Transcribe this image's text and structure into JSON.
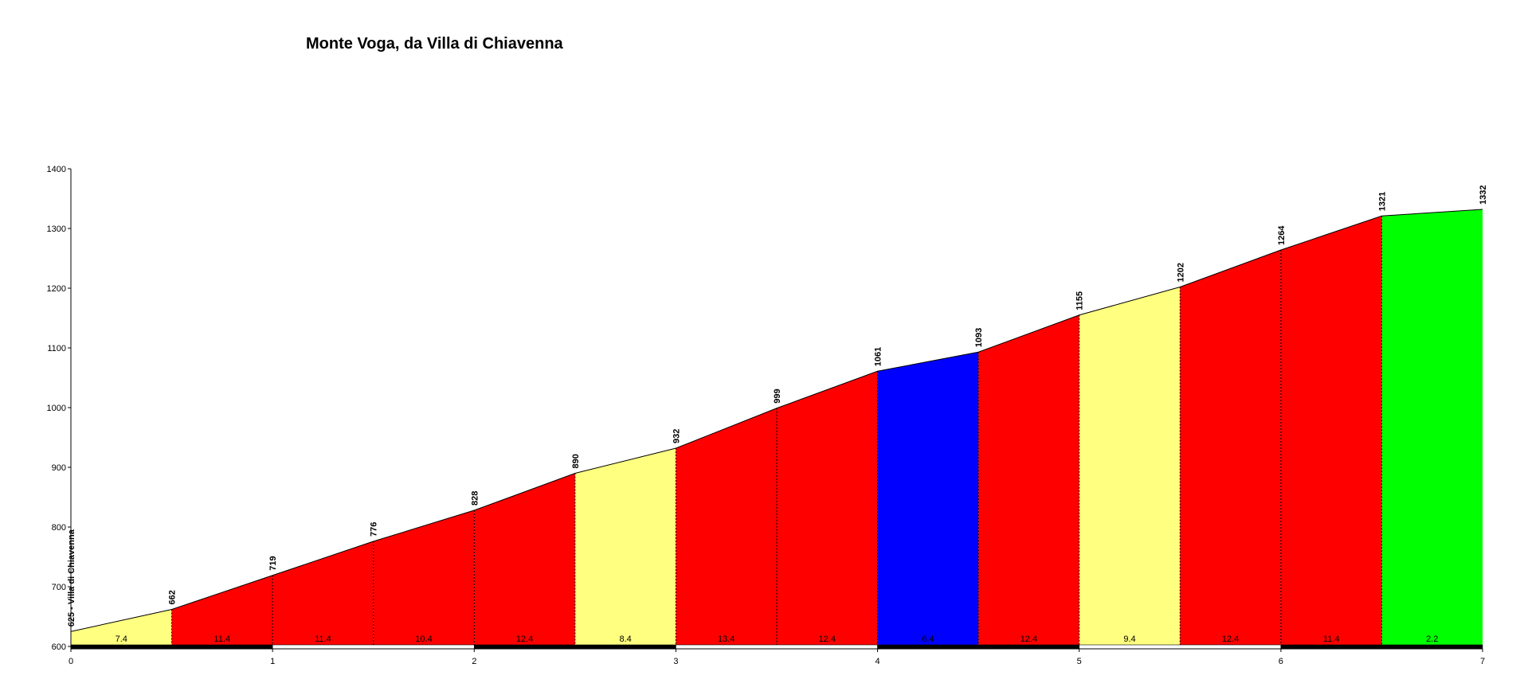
{
  "chart_data": {
    "type": "area",
    "title": "Monte Voga, da Villa di Chiavenna",
    "xlabel": "",
    "ylabel": "",
    "xlim": [
      0,
      7
    ],
    "ylim": [
      600,
      1400
    ],
    "x_ticks": [
      "0",
      "1",
      "2",
      "3",
      "4",
      "5",
      "6",
      "7"
    ],
    "y_ticks": [
      "600",
      "700",
      "800",
      "900",
      "1000",
      "1100",
      "1200",
      "1300",
      "1400"
    ],
    "grid": false,
    "legend": "none",
    "points": [
      {
        "x": 0.0,
        "y": 625,
        "label": "625 - Villa di Chiavenna"
      },
      {
        "x": 0.5,
        "y": 662,
        "label": "662"
      },
      {
        "x": 1.0,
        "y": 719,
        "label": "719"
      },
      {
        "x": 1.5,
        "y": 776,
        "label": "776"
      },
      {
        "x": 2.0,
        "y": 828,
        "label": "828"
      },
      {
        "x": 2.5,
        "y": 890,
        "label": "890"
      },
      {
        "x": 3.0,
        "y": 932,
        "label": "932"
      },
      {
        "x": 3.5,
        "y": 999,
        "label": "999"
      },
      {
        "x": 4.0,
        "y": 1061,
        "label": "1061"
      },
      {
        "x": 4.5,
        "y": 1093,
        "label": "1093"
      },
      {
        "x": 5.0,
        "y": 1155,
        "label": "1155"
      },
      {
        "x": 5.5,
        "y": 1202,
        "label": "1202"
      },
      {
        "x": 6.0,
        "y": 1264,
        "label": "1264"
      },
      {
        "x": 6.5,
        "y": 1321,
        "label": "1321"
      },
      {
        "x": 7.0,
        "y": 1332,
        "label": "1332"
      }
    ],
    "segments": [
      {
        "gradient": "7.4",
        "color": "#ffff80"
      },
      {
        "gradient": "11.4",
        "color": "#ff0000"
      },
      {
        "gradient": "11.4",
        "color": "#ff0000"
      },
      {
        "gradient": "10.4",
        "color": "#ff0000"
      },
      {
        "gradient": "12.4",
        "color": "#ff0000"
      },
      {
        "gradient": "8.4",
        "color": "#ffff80"
      },
      {
        "gradient": "13.4",
        "color": "#ff0000"
      },
      {
        "gradient": "12.4",
        "color": "#ff0000"
      },
      {
        "gradient": "6.4",
        "color": "#0000ff"
      },
      {
        "gradient": "12.4",
        "color": "#ff0000"
      },
      {
        "gradient": "9.4",
        "color": "#ffff80"
      },
      {
        "gradient": "12.4",
        "color": "#ff0000"
      },
      {
        "gradient": "11.4",
        "color": "#ff0000"
      },
      {
        "gradient": "2.2",
        "color": "#00ff00"
      }
    ]
  }
}
